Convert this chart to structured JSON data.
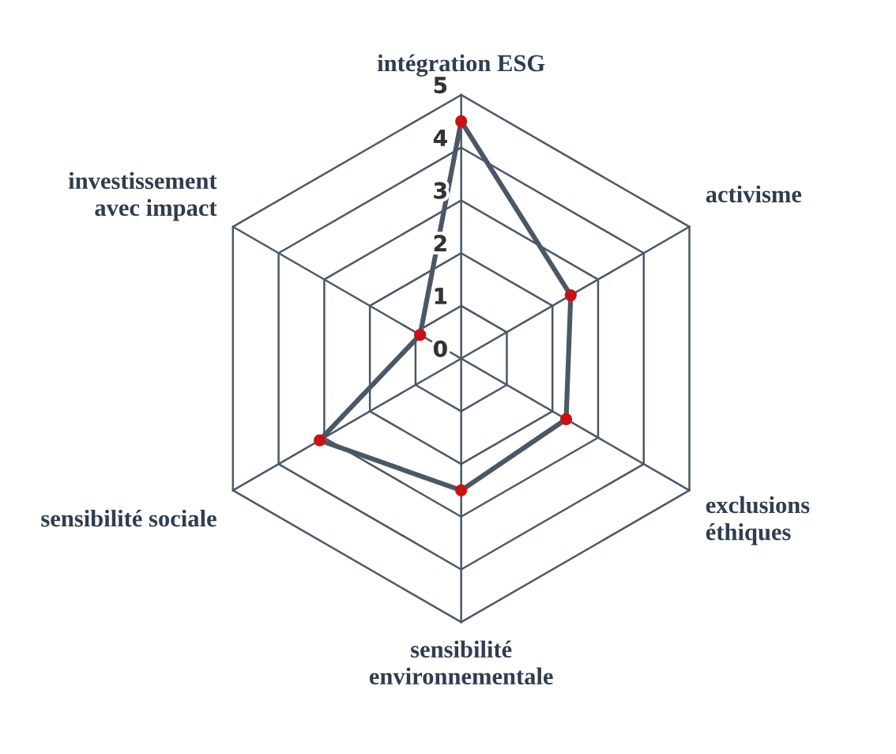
{
  "chart_data": {
    "type": "radar",
    "categories": [
      "intégration ESG",
      "activisme",
      "exclusions\néthiques",
      "sensibilité\nenvironnementale",
      "sensibilité sociale",
      "investissement\navec impact"
    ],
    "series": [
      {
        "color": "#4a5866",
        "values": [
          4.5,
          2.4,
          2.3,
          2.5,
          3.1,
          0.9
        ]
      }
    ],
    "ylim": [
      0,
      5
    ],
    "yticks": [
      0,
      1,
      2,
      3,
      4,
      5
    ],
    "grid": true,
    "marker": "circle",
    "line_style": "solid"
  }
}
